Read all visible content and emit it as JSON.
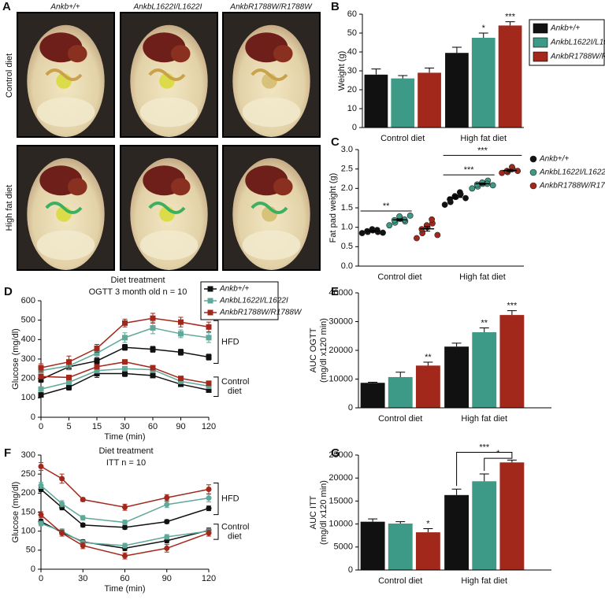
{
  "panel_a": {
    "panel": "A",
    "columns": [
      "Ankb+/+",
      "AnkbL1622I/L1622I",
      "AnkbR1788W/R1788W"
    ],
    "rows": [
      "Control diet",
      "High fat diet"
    ]
  },
  "chart_data": [
    {
      "panel": "B",
      "type": "bar",
      "ylabel": "Weight (g)",
      "categories": [
        "Control diet",
        "High fat diet"
      ],
      "ylim": [
        0,
        60
      ],
      "yticks": [
        0,
        10,
        20,
        30,
        40,
        50,
        60
      ],
      "legend": "right",
      "series": [
        {
          "name": "Ankb+/+",
          "color": "#111111",
          "values": [
            28,
            39.5
          ],
          "errors": [
            3,
            3
          ]
        },
        {
          "name": "AnkbL1622I/L1622I",
          "color": "#3d9a86",
          "values": [
            26,
            47.5
          ],
          "errors": [
            1.5,
            2.5
          ],
          "stars": [
            null,
            "*"
          ]
        },
        {
          "name": "AnkbR1788W/R1788W",
          "color": "#a3281c",
          "values": [
            29,
            54
          ],
          "errors": [
            2.5,
            2
          ],
          "stars": [
            null,
            "***"
          ]
        }
      ]
    },
    {
      "panel": "C",
      "type": "strip",
      "ylabel": "Fat pad weight (g)",
      "categories": [
        "Control diet",
        "High fat diet"
      ],
      "ylim": [
        0,
        3
      ],
      "yticks": [
        {
          "value": 0,
          "label": "0.0"
        },
        0.5,
        {
          "value": 1,
          "label": "1.0"
        },
        1.5,
        {
          "value": 2,
          "label": "2.0"
        },
        2.5,
        {
          "value": 3,
          "label": "3.0"
        }
      ],
      "legend": "right",
      "series": [
        {
          "name": "Ankb+/+",
          "color": "#111111",
          "values": [
            [
              0.85,
              0.88,
              0.9,
              0.92,
              0.95,
              0.88,
              0.93,
              0.86
            ],
            [
              1.58,
              1.65,
              1.72,
              1.78,
              1.8,
              1.85,
              1.9,
              1.75
            ]
          ],
          "means": [
            0.9,
            1.77
          ],
          "errors": [
            0.02,
            0.04
          ]
        },
        {
          "name": "AnkbL1622I/L1622I",
          "color": "#3d9a86",
          "values": [
            [
              1.05,
              1.12,
              1.18,
              1.22,
              1.28,
              1.15,
              1.2,
              1.3
            ],
            [
              2.0,
              2.05,
              2.1,
              2.12,
              2.15,
              2.2,
              2.12,
              2.08
            ]
          ],
          "means": [
            1.19,
            2.12
          ],
          "errors": [
            0.03,
            0.02
          ]
        },
        {
          "name": "AnkbR1788W/R1788W",
          "color": "#a3281c",
          "values": [
            [
              0.72,
              0.85,
              0.95,
              1.0,
              1.05,
              1.1,
              1.2,
              0.8
            ],
            [
              2.4,
              2.42,
              2.45,
              2.5,
              2.55,
              2.45
            ]
          ],
          "means": [
            0.96,
            2.46
          ],
          "errors": [
            0.06,
            0.03
          ]
        }
      ],
      "comparisons": [
        {
          "label": "**",
          "category": "Control diet",
          "between": [
            "Ankb+/+",
            "AnkbL1622I/L1622I"
          ],
          "y": 1.42
        },
        {
          "label": "***",
          "category": "High fat diet",
          "between": [
            "Ankb+/+",
            "AnkbL1622I/L1622I"
          ],
          "y": 2.35
        },
        {
          "label": "***",
          "category": "High fat diet",
          "between": [
            "Ankb+/+",
            "AnkbR1788W/R1788W"
          ],
          "y": 2.85
        }
      ]
    },
    {
      "panel": "D",
      "type": "line",
      "title": [
        "Diet treatment",
        "OGTT 3 month old n = 10"
      ],
      "xlabel": "Time (min)",
      "ylabel": "Glucose (mg/dl)",
      "marker": "square",
      "categories": [
        "0",
        "5",
        "15",
        "30",
        "60",
        "90",
        "120"
      ],
      "ylim": [
        0,
        600
      ],
      "yticks": [
        0,
        100,
        200,
        300,
        400,
        500,
        600
      ],
      "series_names": [
        "Ankb+/+",
        "AnkbL1622I/L1622I",
        "AnkbR1788W/R1788W"
      ],
      "colors": [
        "#111111",
        "#5fa99a",
        "#a3281c"
      ],
      "legend": "top-right",
      "groups": [
        {
          "label": "HFD",
          "series": [
            {
              "values": [
                195,
                260,
                290,
                360,
                350,
                335,
                310
              ],
              "errors": [
                15,
                15,
                15,
                15,
                15,
                15,
                15
              ]
            },
            {
              "values": [
                240,
                265,
                330,
                410,
                460,
                430,
                410
              ],
              "errors": [
                20,
                20,
                20,
                25,
                30,
                20,
                25
              ]
            },
            {
              "values": [
                255,
                285,
                355,
                485,
                510,
                490,
                465
              ],
              "errors": [
                20,
                30,
                20,
                20,
                25,
                25,
                25
              ]
            }
          ]
        },
        {
          "label": [
            "Control",
            "diet"
          ],
          "series": [
            {
              "values": [
                115,
                155,
                225,
                225,
                215,
                170,
                140
              ],
              "errors": [
                10,
                15,
                20,
                15,
                10,
                10,
                10
              ]
            },
            {
              "values": [
                145,
                180,
                240,
                250,
                245,
                185,
                160
              ],
              "errors": [
                10,
                10,
                10,
                10,
                10,
                10,
                10
              ]
            },
            {
              "values": [
                210,
                205,
                260,
                285,
                255,
                200,
                175
              ],
              "errors": [
                10,
                10,
                10,
                10,
                10,
                10,
                10
              ]
            }
          ]
        }
      ]
    },
    {
      "panel": "E",
      "type": "bar",
      "ylabel": [
        "AUC OGTT",
        "(mg/dl x120 min)"
      ],
      "categories": [
        "Control diet",
        "High fat diet"
      ],
      "ylim": [
        0,
        40000
      ],
      "yticks": [
        0,
        10000,
        20000,
        30000,
        40000
      ],
      "series": [
        {
          "name": "Ankb+/+",
          "color": "#111111",
          "values": [
            8700,
            21300
          ],
          "errors": [
            200,
            1200
          ]
        },
        {
          "name": "AnkbL1622I/L1622I",
          "color": "#3d9a86",
          "values": [
            10700,
            26300
          ],
          "errors": [
            1700,
            1500
          ],
          "stars": [
            null,
            "**"
          ]
        },
        {
          "name": "AnkbR1788W/R1788W",
          "color": "#a3281c",
          "values": [
            14700,
            32300
          ],
          "errors": [
            1200,
            1500
          ],
          "stars": [
            "**",
            "***"
          ]
        }
      ]
    },
    {
      "panel": "F",
      "type": "line",
      "title": [
        "Diet treatment",
        "ITT n = 10"
      ],
      "xlabel": "Time (min)",
      "ylabel": "Glucose (mg/dl)",
      "marker": "circle",
      "x": [
        0,
        15,
        30,
        60,
        90,
        120
      ],
      "xlim": [
        0,
        120
      ],
      "xticks": [
        0,
        30,
        60,
        90,
        120
      ],
      "ylim": [
        0,
        300
      ],
      "yticks": [
        0,
        50,
        100,
        150,
        200,
        250,
        300
      ],
      "colors": [
        "#111111",
        "#5fa99a",
        "#a3281c"
      ],
      "groups": [
        {
          "label": "HFD",
          "series": [
            {
              "values": [
                210,
                162,
                116,
                110,
                125,
                160
              ],
              "errors": [
                6,
                6,
                5,
                5,
                5,
                6
              ]
            },
            {
              "values": [
                220,
                172,
                135,
                123,
                170,
                187
              ],
              "errors": [
                8,
                8,
                6,
                6,
                8,
                10
              ]
            },
            {
              "values": [
                270,
                238,
                183,
                163,
                188,
                210
              ],
              "errors": [
                10,
                12,
                5,
                8,
                8,
                12
              ]
            }
          ]
        },
        {
          "label": [
            "Control",
            "diet"
          ],
          "series": [
            {
              "values": [
                125,
                97,
                72,
                55,
                75,
                102
              ],
              "errors": [
                6,
                6,
                5,
                6,
                6,
                6
              ]
            },
            {
              "values": [
                120,
                100,
                70,
                62,
                85,
                100
              ],
              "errors": [
                6,
                6,
                5,
                6,
                6,
                6
              ]
            },
            {
              "values": [
                143,
                95,
                62,
                35,
                55,
                95
              ],
              "errors": [
                8,
                8,
                8,
                8,
                10,
                8
              ]
            }
          ]
        }
      ]
    },
    {
      "panel": "G",
      "type": "bar",
      "ylabel": [
        "AUC ITT",
        "(mg/dl x120 min)"
      ],
      "categories": [
        "Control diet",
        "High fat diet"
      ],
      "ylim": [
        0,
        25000
      ],
      "yticks": [
        0,
        5000,
        10000,
        15000,
        20000,
        25000
      ],
      "bracket_ends": true,
      "series": [
        {
          "name": "Ankb+/+",
          "color": "#111111",
          "values": [
            10500,
            16300
          ],
          "errors": [
            600,
            1300
          ]
        },
        {
          "name": "AnkbL1622I/L1622I",
          "color": "#3d9a86",
          "values": [
            10100,
            19300
          ],
          "errors": [
            400,
            1600
          ]
        },
        {
          "name": "AnkbR1788W/R1788W",
          "color": "#a3281c",
          "values": [
            8200,
            23400
          ],
          "errors": [
            800,
            500
          ],
          "stars": [
            "*",
            null
          ]
        }
      ],
      "comparisons": [
        {
          "label": "***",
          "category": "High fat diet",
          "between": [
            "Ankb+/+",
            "AnkbR1788W/R1788W"
          ],
          "y": 25600
        },
        {
          "label": "*",
          "category": "High fat diet",
          "between": [
            "AnkbL1622I/L1622I",
            "AnkbR1788W/R1788W"
          ],
          "y": 24300
        }
      ]
    }
  ]
}
